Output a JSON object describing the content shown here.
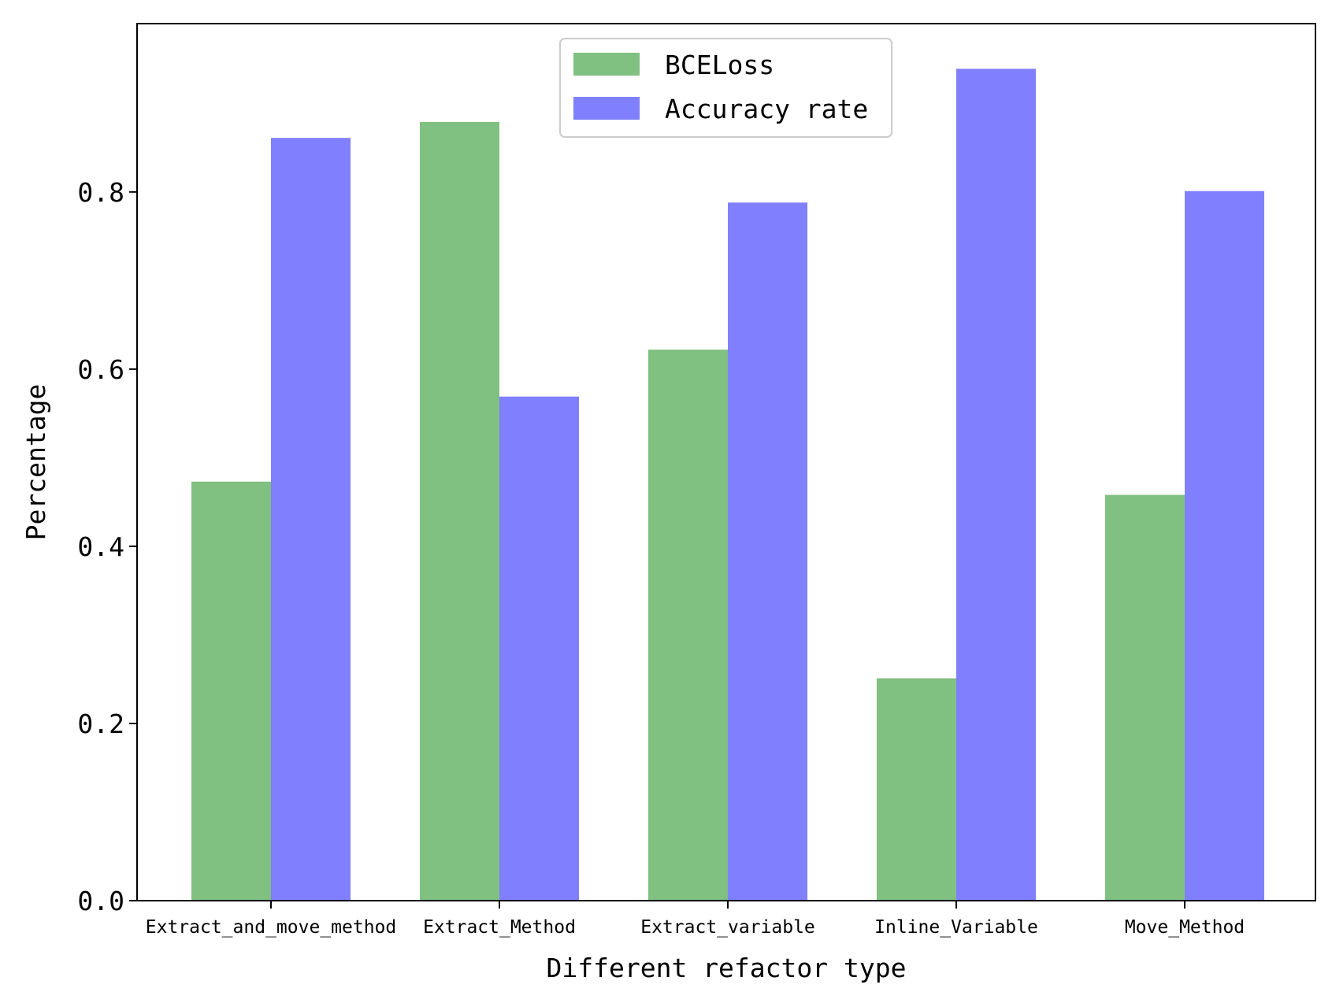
{
  "chart_data": {
    "type": "bar",
    "categories": [
      "Extract_and_move_method",
      "Extract_Method",
      "Extract_variable",
      "Inline_Variable",
      "Move_Method"
    ],
    "series": [
      {
        "name": "BCELoss",
        "values": [
          0.473,
          0.879,
          0.622,
          0.251,
          0.458
        ],
        "color": "#80c080"
      },
      {
        "name": "Accuracy rate",
        "values": [
          0.861,
          0.569,
          0.788,
          0.939,
          0.801
        ],
        "color": "#8080ff"
      }
    ],
    "xlabel": "Different refactor type",
    "ylabel": "Percentage",
    "ylim": [
      0,
      0.99
    ],
    "yticks": [
      "0.0",
      "0.2",
      "0.4",
      "0.6",
      "0.8"
    ],
    "ytick_values": [
      0,
      0.2,
      0.4,
      0.6,
      0.8
    ],
    "grid": false,
    "legend": "top-center"
  }
}
